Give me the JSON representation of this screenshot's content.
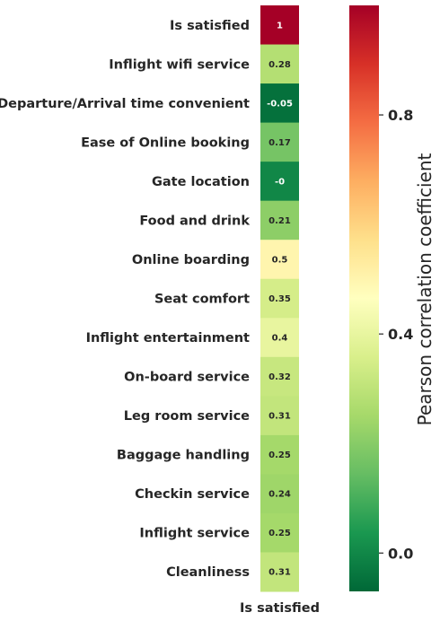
{
  "chart_data": {
    "type": "heatmap",
    "rows": [
      "Is satisfied",
      "Inflight wifi service",
      "Departure/Arrival time convenient",
      "Ease of Online booking",
      "Gate location",
      "Food and drink",
      "Online boarding",
      "Seat comfort",
      "Inflight entertainment",
      "On-board service",
      "Leg room service",
      "Baggage handling",
      "Checkin service",
      "Inflight service",
      "Cleanliness"
    ],
    "columns": [
      "Is satisfied"
    ],
    "values": [
      1,
      0.28,
      -0.05,
      0.17,
      0,
      0.21,
      0.5,
      0.35,
      0.4,
      0.32,
      0.31,
      0.25,
      0.24,
      0.25,
      0.31
    ],
    "value_labels": [
      "1",
      "0.28",
      "-0.05",
      "0.17",
      "-0",
      "0.21",
      "0.5",
      "0.35",
      "0.4",
      "0.32",
      "0.31",
      "0.25",
      "0.24",
      "0.25",
      "0.31"
    ],
    "colormap": "RdYlGn_r",
    "vmin": -0.07,
    "vmax": 1.0,
    "colorbar": {
      "label": "Pearson correlation coefficient",
      "ticks": [
        0.0,
        0.4,
        0.8
      ],
      "tick_labels": [
        "0.0",
        "0.4",
        "0.8"
      ]
    },
    "grid": false
  }
}
